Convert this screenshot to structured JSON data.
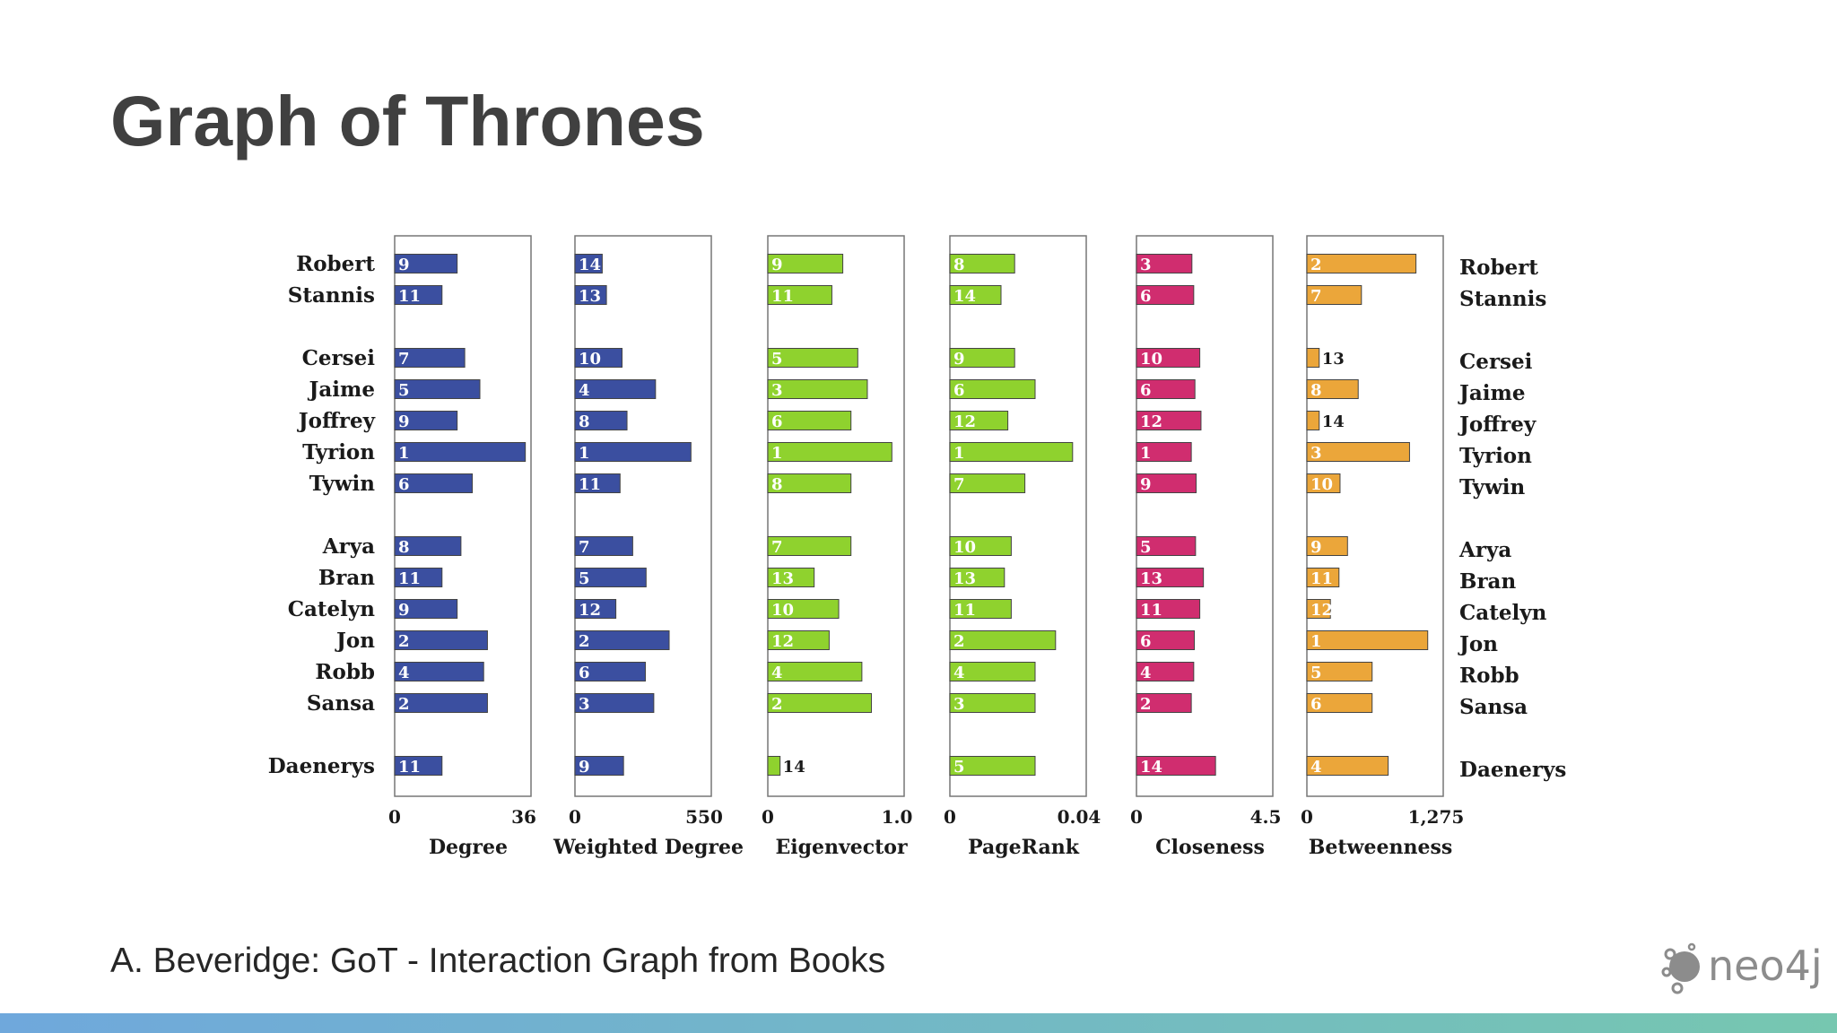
{
  "slide": {
    "title": "Graph of Thrones",
    "caption": "A. Beveridge: GoT - Interaction Graph from Books",
    "logo_text": "neo4j",
    "bottom_bar_colors": [
      "#6fa8dc",
      "#76c7b0"
    ]
  },
  "chart_data": {
    "type": "bar",
    "orientation": "horizontal",
    "categories": [
      "Robert",
      "Stannis",
      "Cersei",
      "Jaime",
      "Joffrey",
      "Tyrion",
      "Tywin",
      "Arya",
      "Bran",
      "Catelyn",
      "Jon",
      "Robb",
      "Sansa",
      "Daenerys"
    ],
    "groups": [
      2,
      5,
      6,
      1
    ],
    "panels": [
      {
        "xlabel": "Degree",
        "color": "#3b4fa0",
        "xlim": [
          0,
          36
        ],
        "tick_labels": [
          "0",
          "36"
        ],
        "values": [
          16.5,
          12.5,
          18.5,
          22.5,
          16.5,
          34.5,
          20.5,
          17.5,
          12.5,
          16.5,
          24.5,
          23.5,
          24.5,
          12.5
        ],
        "ranks": [
          "9",
          "11",
          "7",
          "5",
          "9",
          "1",
          "6",
          "8",
          "11",
          "9",
          "2",
          "4",
          "2",
          "11"
        ]
      },
      {
        "xlabel": "Weighted Degree",
        "color": "#3b4fa0",
        "xlim": [
          0,
          550
        ],
        "tick_labels": [
          "0",
          "550"
        ],
        "values": [
          110,
          127,
          190,
          325,
          210,
          468,
          182,
          233,
          287,
          165,
          380,
          284,
          318,
          196
        ],
        "ranks": [
          "14",
          "13",
          "10",
          "4",
          "8",
          "1",
          "11",
          "7",
          "5",
          "12",
          "2",
          "6",
          "3",
          "9"
        ]
      },
      {
        "xlabel": "Eigenvector",
        "color": "#8fd22e",
        "xlim": [
          0,
          1.0
        ],
        "tick_labels": [
          "0",
          "1.0"
        ],
        "values": [
          0.55,
          0.47,
          0.66,
          0.73,
          0.61,
          0.91,
          0.61,
          0.61,
          0.34,
          0.52,
          0.45,
          0.69,
          0.76,
          0.09
        ],
        "ranks": [
          "9",
          "11",
          "5",
          "3",
          "6",
          "1",
          "8",
          "7",
          "13",
          "10",
          "12",
          "4",
          "2",
          "14"
        ]
      },
      {
        "xlabel": "PageRank",
        "color": "#8fd22e",
        "xlim": [
          0,
          0.04
        ],
        "tick_labels": [
          "0",
          "0.04"
        ],
        "values": [
          0.019,
          0.015,
          0.019,
          0.025,
          0.017,
          0.036,
          0.022,
          0.018,
          0.016,
          0.018,
          0.031,
          0.025,
          0.025,
          0.025
        ],
        "ranks": [
          "8",
          "14",
          "9",
          "6",
          "12",
          "1",
          "7",
          "10",
          "13",
          "11",
          "2",
          "4",
          "3",
          "5"
        ]
      },
      {
        "xlabel": "Closeness",
        "color": "#d02d6f",
        "xlim": [
          0,
          4.5
        ],
        "tick_labels": [
          "0",
          "4.5"
        ],
        "values": [
          1.83,
          1.89,
          2.09,
          1.93,
          2.13,
          1.81,
          1.97,
          1.95,
          2.21,
          2.09,
          1.91,
          1.89,
          1.81,
          2.61
        ],
        "ranks": [
          "3",
          "6",
          "10",
          "6",
          "12",
          "1",
          "9",
          "5",
          "13",
          "11",
          "6",
          "4",
          "2",
          "14"
        ]
      },
      {
        "xlabel": "Betweenness",
        "color": "#eba63a",
        "xlim": [
          0,
          1275
        ],
        "tick_labels": [
          "0",
          "1,275"
        ],
        "values": [
          1020,
          510,
          115,
          480,
          115,
          960,
          310,
          380,
          300,
          220,
          1130,
          610,
          610,
          760
        ],
        "ranks": [
          "2",
          "7",
          "13",
          "8",
          "14",
          "3",
          "10",
          "9",
          "11",
          "12",
          "1",
          "5",
          "6",
          "4"
        ]
      }
    ],
    "right_labels": [
      "Robert",
      "Stannis",
      "Cersei",
      "Jaime",
      "Joffrey",
      "Tyrion",
      "Tywin",
      "Arya",
      "Bran",
      "Catelyn",
      "Jon",
      "Robb",
      "Sansa",
      "Daenerys"
    ]
  }
}
